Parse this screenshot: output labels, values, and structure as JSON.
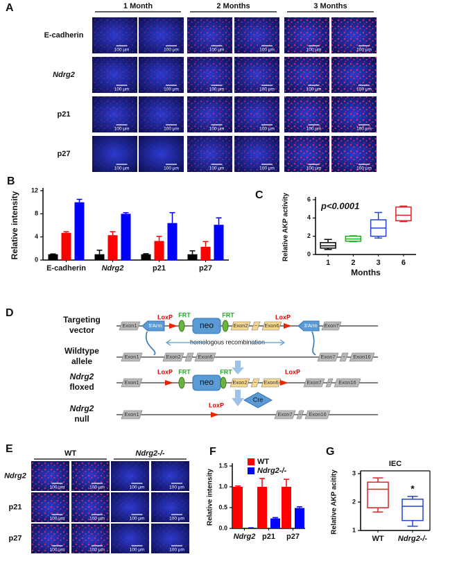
{
  "panel_a": {
    "label": "A",
    "columns": [
      "1 Month",
      "2 Months",
      "3 Months"
    ],
    "rows": [
      "E-cadherin",
      "Ndrg2",
      "p21",
      "p27"
    ],
    "scale_label": "100 μm"
  },
  "chart_data": [
    {
      "label": "B",
      "type": "bar",
      "ylabel": "Relative intensity",
      "categories": [
        "E-cadherin",
        "Ndrg2",
        "p21",
        "p27"
      ],
      "series": [
        {
          "color": "#000000",
          "values": [
            1,
            1,
            1,
            1
          ],
          "errors": [
            0.05,
            0.7,
            0.1,
            0.6
          ]
        },
        {
          "color": "#ff0000",
          "values": [
            4.7,
            4.3,
            3.3,
            2.3
          ],
          "errors": [
            0.2,
            0.6,
            0.8,
            0.9
          ]
        },
        {
          "color": "#0000ff",
          "values": [
            10,
            8,
            6.4,
            6.1
          ],
          "errors": [
            0.5,
            0.2,
            1.8,
            1.2
          ]
        }
      ],
      "ylim": [
        0,
        12
      ],
      "yticks": [
        0,
        4,
        8,
        12
      ]
    },
    {
      "label": "C",
      "type": "box",
      "xlabel": "Months",
      "ylabel": "Relative AKP activity",
      "annotation": "p<0.0001",
      "categories": [
        "1",
        "2",
        "3",
        "6"
      ],
      "boxes": [
        {
          "color": "#000000",
          "min": 0.55,
          "q1": 0.7,
          "median": 0.95,
          "q3": 1.3,
          "max": 1.65
        },
        {
          "color": "#22aa22",
          "min": 1.4,
          "q1": 1.45,
          "median": 1.7,
          "q3": 2.0,
          "max": 2.05
        },
        {
          "color": "#2244cc",
          "min": 1.8,
          "q1": 2.0,
          "median": 2.9,
          "q3": 3.8,
          "max": 4.6
        },
        {
          "color": "#dd2222",
          "min": 3.6,
          "q1": 3.7,
          "median": 4.3,
          "q3": 5.2,
          "max": 5.3
        }
      ],
      "ylim": [
        0,
        6
      ],
      "yticks": [
        0,
        2,
        4,
        6
      ]
    },
    {
      "label": "F",
      "type": "bar",
      "ylabel": "Relative intensity",
      "categories": [
        "Ndrg2",
        "p21",
        "p27"
      ],
      "legend": "top-right",
      "series": [
        {
          "name": "WT",
          "color": "#ff0000",
          "values": [
            1.0,
            1.0,
            1.0
          ],
          "errors": [
            0.02,
            0.2,
            0.18
          ]
        },
        {
          "name": "Ndrg2-/-",
          "color": "#0000ff",
          "values": [
            0.01,
            0.24,
            0.49
          ],
          "errors": [
            0.005,
            0.02,
            0.03
          ]
        }
      ],
      "ylim": [
        0,
        1.5
      ],
      "yticks": [
        {
          "value": 0,
          "label": "0.0"
        },
        0.5,
        {
          "value": 1,
          "label": "1.0"
        },
        1.5
      ]
    },
    {
      "label": "G",
      "type": "box",
      "title": "IEC",
      "ylabel": "Relative AKP acitity",
      "annotation": "*",
      "categories": [
        "WT",
        "Ndrg2-/-"
      ],
      "boxes": [
        {
          "color": "#dd2222",
          "min": 1.65,
          "q1": 1.8,
          "median": 2.45,
          "q3": 2.7,
          "max": 2.85
        },
        {
          "color": "#2244cc",
          "min": 1.15,
          "q1": 1.35,
          "median": 1.85,
          "q3": 2.1,
          "max": 2.2
        }
      ],
      "ylim": [
        1,
        3
      ],
      "yticks": [
        1,
        2,
        3
      ]
    }
  ],
  "panel_d": {
    "label": "D",
    "row_labels": [
      [
        "Targeting",
        "vector"
      ],
      [
        "Wildtype",
        "allele"
      ],
      [
        "Ndrg2",
        "floxed"
      ],
      [
        "Ndrg2",
        "null"
      ]
    ],
    "targeting": {
      "exon1": "Exon1",
      "arm5": "5'Arm",
      "loxp1": "LoxP",
      "frt1": "FRT",
      "neo": "neo",
      "frt2": "FRT",
      "exon2": "Exon2",
      "tilde": "~",
      "exon6": "Exon6",
      "loxp2": "LoxP",
      "arm3": "3'Arm",
      "exon7": "Exon7"
    },
    "recombination": "homologous recombination",
    "wildtype": {
      "exon1": "Exon1",
      "exon2": "Exon2",
      "tilde": "~",
      "exon6": "Exon6",
      "exon7": "Exon7",
      "tilde2": "~",
      "exon16": "Exon16"
    },
    "floxed": {
      "exon1": "Exon1",
      "loxp1": "LoxP",
      "frt1": "FRT",
      "neo": "neo",
      "frt2": "FRT",
      "exon2": "Exon2",
      "tilde": "~",
      "exon6": "Exon6",
      "loxp2": "LoxP",
      "exon7": "Exon7",
      "tilde2": "~",
      "exon16": "Exon16"
    },
    "cre": "Cre",
    "null": {
      "exon1": "Exon1",
      "loxp": "LoxP",
      "exon7": "Exon7",
      "tilde": "~",
      "exon16": "Exon16"
    }
  },
  "panel_e": {
    "label": "E",
    "columns": [
      "WT",
      "Ndrg2-/-"
    ],
    "rows": [
      "Ndrg2",
      "p21",
      "p27"
    ],
    "scale_label": "100 μm"
  }
}
